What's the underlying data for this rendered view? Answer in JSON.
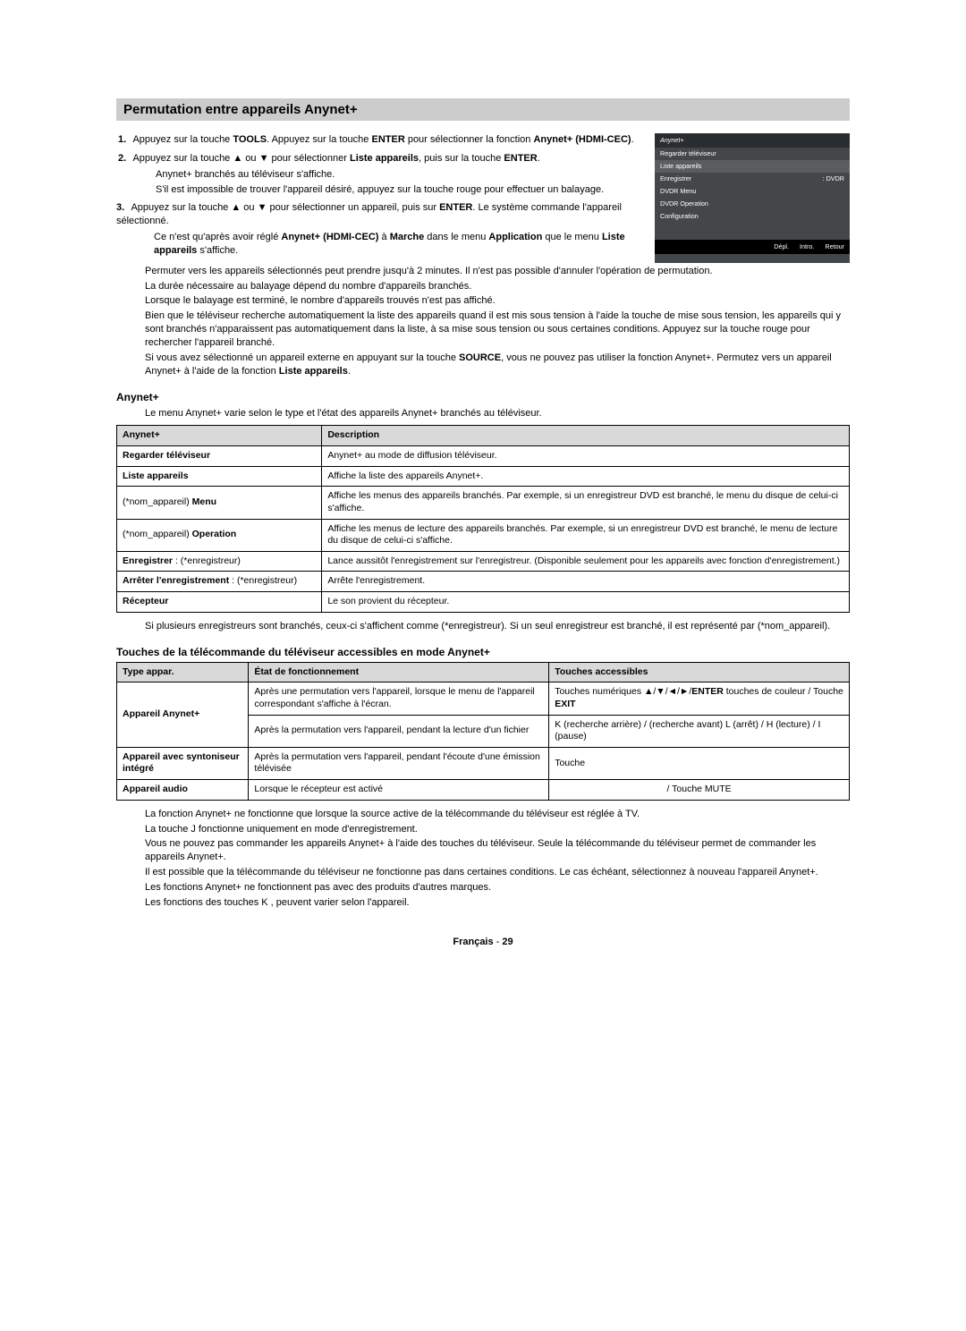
{
  "title": "Permutation entre appareils Anynet+",
  "osd": {
    "header": "Anynet+",
    "rows": [
      {
        "l": "Regarder téléviseur",
        "r": "",
        "sel": false
      },
      {
        "l": "Liste appareils",
        "r": "",
        "sel": true
      },
      {
        "l": "Enregistrer",
        "r": ": DVDR",
        "sel": false
      },
      {
        "l": "DVDR Menu",
        "r": "",
        "sel": false
      },
      {
        "l": "DVDR Operation",
        "r": "",
        "sel": false
      },
      {
        "l": "Configuration",
        "r": "",
        "sel": false
      }
    ],
    "footer": [
      "Dépl.",
      "Intro.",
      "Retour"
    ]
  },
  "steps": {
    "s1a": "Appuyez sur la touche ",
    "s1b": "TOOLS",
    "s1c": ". Appuyez sur la touche ",
    "s1d": "ENTER",
    "s1e": " pour sélectionner la fonction ",
    "s1f": "Anynet+ (HDMI-CEC)",
    "s1g": ".",
    "s2a": "Appuyez sur la touche ▲ ou ▼ pour sélectionner ",
    "s2b": "Liste appareils",
    "s2c": ", puis sur la touche ",
    "s2d": "ENTER",
    "s2e": ".",
    "s2sub1": "Anynet+ branchés au téléviseur s'affiche.",
    "s2sub2": "S'il est impossible de trouver l'appareil désiré, appuyez sur la touche rouge pour effectuer un balayage.",
    "s3a": "Appuyez sur la touche ▲ ou ▼ pour sélectionner un appareil, puis sur ",
    "s3b": "ENTER",
    "s3c": ". Le système commande l'appareil sélectionné.",
    "s3note1a": "Ce n'est qu'après avoir réglé ",
    "s3note1b": "Anynet+ (HDMI-CEC)",
    "s3note1c": " à ",
    "s3note1d": "Marche",
    "s3note1e": " dans le menu ",
    "s3note1f": "Application",
    "s3note1g": " que le menu ",
    "s3note1h": "Liste appareils",
    "s3note1i": " s'affiche."
  },
  "notes": [
    "Permuter vers les appareils sélectionnés peut prendre jusqu'à 2 minutes. Il n'est pas possible d'annuler l'opération de permutation.",
    "La durée nécessaire au balayage dépend du nombre d'appareils branchés.",
    "Lorsque le balayage est terminé, le nombre d'appareils trouvés n'est pas affiché.",
    "Bien que le téléviseur recherche automatiquement la liste des appareils quand il est mis sous tension à l'aide la touche de mise sous tension, les appareils qui y sont branchés n'apparaissent pas automatiquement dans la liste, à sa mise sous tension ou sous certaines conditions. Appuyez sur la touche rouge pour rechercher l'appareil branché."
  ],
  "note5a": "Si vous avez sélectionné un appareil externe en appuyant sur la touche ",
  "note5b": "SOURCE",
  "note5c": ", vous ne pouvez pas utiliser la fonction Anynet+. Permutez vers un appareil Anynet+ à l'aide de la fonction ",
  "note5d": "Liste appareils",
  "note5e": ".",
  "section2": {
    "heading": "Anynet+",
    "intro": "Le menu Anynet+ varie selon le type et l'état des appareils Anynet+ branchés au téléviseur.",
    "th1": "Anynet+",
    "th2": "Description",
    "rows": [
      {
        "c1": "Regarder téléviseur",
        "c2": "Anynet+ au mode de diffusion téléviseur.",
        "b1": true
      },
      {
        "c1": "Liste appareils",
        "c2": "Affiche la liste des appareils Anynet+.",
        "b1": true
      },
      {
        "c1": "(*nom_appareil) Menu",
        "c2": "Affiche les menus des appareils branchés. Par exemple, si un enregistreur DVD est branché, le menu du disque de celui-ci s'affiche.",
        "b1p": "Menu"
      },
      {
        "c1": "(*nom_appareil) Operation",
        "c2": "Affiche les menus de lecture des appareils branchés. Par exemple, si un enregistreur DVD est branché, le menu de lecture du disque de celui-ci s'affiche.",
        "b1p": "Operation"
      },
      {
        "c1": "Enregistrer : (*enregistreur)",
        "c2": "Lance aussitôt l'enregistrement sur l'enregistreur. (Disponible seulement pour les appareils avec fonction d'enregistrement.)",
        "b1p": "Enregistrer"
      },
      {
        "c1": "Arrêter l'enregistrement : (*enregistreur)",
        "c2": "Arrête l'enregistrement.",
        "b1p": "Arrêter l'enregistrement"
      },
      {
        "c1": "Récepteur",
        "c2": "Le son provient du récepteur.",
        "b1": true
      }
    ],
    "after": "Si plusieurs enregistreurs sont branchés, ceux-ci s'affichent comme (*enregistreur). Si un seul enregistreur est branché, il est représenté par (*nom_appareil)."
  },
  "section3": {
    "heading": "Touches de la télécommande du téléviseur accessibles en mode Anynet+",
    "th1": "Type appar.",
    "th2": "État de fonctionnement",
    "th3": "Touches accessibles",
    "r1c1": "Appareil Anynet+",
    "r1c2": "Après une permutation vers l'appareil, lorsque le menu de l'appareil correspondant s'affiche à l'écran.",
    "r1c3a": "Touches numériques ▲/▼/◄/►/",
    "r1c3b": "ENTER",
    "r1c3c": " touches de couleur / Touche ",
    "r1c3d": "EXIT",
    "r2c2": "Après la permutation vers l'appareil, pendant la lecture d'un fichier",
    "r2c3": "K (recherche arrière) / (recherche avant) L (arrêt) / H (lecture) / I (pause)",
    "r3c1": "Appareil avec syntoniseur intégré",
    "r3c2": "Après la permutation vers l'appareil, pendant l'écoute d'une émission télévisée",
    "r3c3": "Touche",
    "r4c1": "Appareil audio",
    "r4c2": "Lorsque le récepteur est activé",
    "r4c3": "/ Touche MUTE",
    "notes": [
      "La fonction Anynet+ ne fonctionne que lorsque la source active de la télécommande du téléviseur est réglée à TV.",
      "La touche J fonctionne uniquement en mode d'enregistrement.",
      "Vous ne pouvez pas commander les appareils Anynet+ à l'aide des touches du téléviseur. Seule la télécommande du téléviseur permet de commander les appareils Anynet+.",
      "Il est possible que la télécommande du téléviseur ne fonctionne pas dans certaines conditions. Le cas échéant, sélectionnez à nouveau l'appareil Anynet+.",
      "Les fonctions Anynet+ ne fonctionnent pas avec des produits d'autres marques.",
      "Les fonctions des touches K , peuvent varier selon l'appareil."
    ]
  },
  "footer": {
    "lang": "Français",
    "sep": " - ",
    "page": "29"
  }
}
